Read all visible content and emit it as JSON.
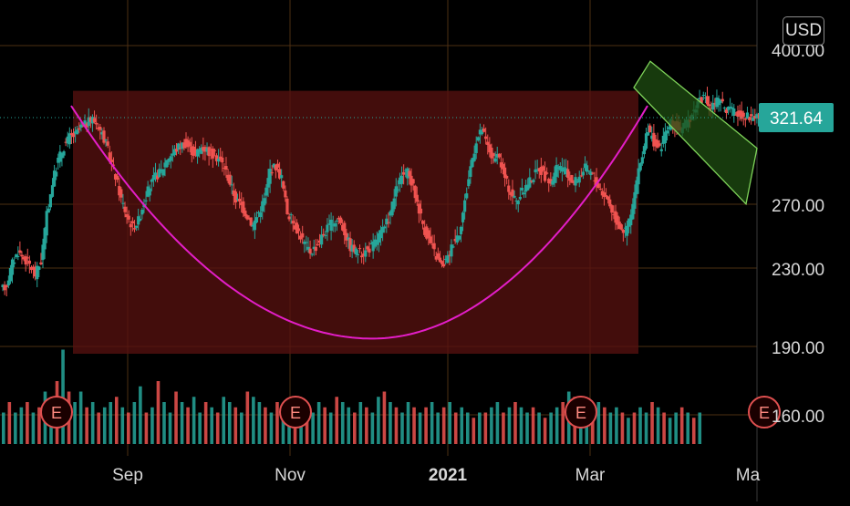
{
  "currency_button": "USD",
  "last_price_label": "321.64",
  "colors": {
    "background": "#000000",
    "grid": "#4d2f12",
    "up": "#26a69a",
    "down": "#ef5350",
    "cup_curve": "#e31ec8",
    "cup_zone": "#5a1210",
    "channel_fill": "#1f4d12",
    "channel_stroke": "#7fd45a",
    "last_price_badge": "#26a69a",
    "earnings_marker": "#e05050",
    "axis_text": "#d8d8d8"
  },
  "earnings_markers": [
    "E",
    "E",
    "E",
    "E"
  ],
  "chart_data": {
    "type": "candlestick",
    "title": "",
    "x_ticks": [
      "Sep",
      "Nov",
      "2021",
      "Mar",
      "Ma"
    ],
    "y_ticks": [
      "400.00",
      "270.00",
      "230.00",
      "190.00",
      "160.00"
    ],
    "price_range": [
      130,
      420
    ],
    "last_price": 321.64,
    "cup_rim_level": 338,
    "cup_bottom_price": 187,
    "cup_range_dates": [
      "Aug 20",
      "Mar 15"
    ],
    "channel_upper": [
      [
        0,
        356
      ],
      [
        1,
        303
      ]
    ],
    "channel_lower": [
      [
        0,
        340
      ],
      [
        1,
        269
      ]
    ],
    "prices": [
      [
        0,
        216
      ],
      [
        4,
        220
      ],
      [
        8,
        233
      ],
      [
        12,
        240
      ],
      [
        16,
        236
      ],
      [
        20,
        232
      ],
      [
        24,
        226
      ],
      [
        28,
        234
      ],
      [
        32,
        262
      ],
      [
        36,
        282
      ],
      [
        40,
        296
      ],
      [
        44,
        304
      ],
      [
        48,
        310
      ],
      [
        52,
        311
      ],
      [
        56,
        316
      ],
      [
        60,
        318
      ],
      [
        64,
        321
      ],
      [
        68,
        317
      ],
      [
        72,
        309
      ],
      [
        76,
        298
      ],
      [
        80,
        286
      ],
      [
        84,
        272
      ],
      [
        88,
        262
      ],
      [
        92,
        255
      ],
      [
        96,
        259
      ],
      [
        100,
        271
      ],
      [
        104,
        280
      ],
      [
        108,
        286
      ],
      [
        112,
        289
      ],
      [
        116,
        297
      ],
      [
        120,
        300
      ],
      [
        124,
        304
      ],
      [
        128,
        306
      ],
      [
        132,
        303
      ],
      [
        136,
        299
      ],
      [
        140,
        304
      ],
      [
        144,
        302
      ],
      [
        148,
        299
      ],
      [
        152,
        297
      ],
      [
        156,
        292
      ],
      [
        160,
        282
      ],
      [
        164,
        272
      ],
      [
        168,
        268
      ],
      [
        172,
        262
      ],
      [
        176,
        256
      ],
      [
        180,
        264
      ],
      [
        184,
        272
      ],
      [
        188,
        290
      ],
      [
        192,
        292
      ],
      [
        196,
        285
      ],
      [
        200,
        264
      ],
      [
        204,
        258
      ],
      [
        208,
        252
      ],
      [
        212,
        245
      ],
      [
        216,
        240
      ],
      [
        220,
        243
      ],
      [
        224,
        249
      ],
      [
        228,
        254
      ],
      [
        232,
        258
      ],
      [
        236,
        260
      ],
      [
        240,
        252
      ],
      [
        244,
        243
      ],
      [
        248,
        240
      ],
      [
        252,
        239
      ],
      [
        256,
        241
      ],
      [
        260,
        244
      ],
      [
        264,
        250
      ],
      [
        268,
        254
      ],
      [
        272,
        264
      ],
      [
        276,
        277
      ],
      [
        280,
        286
      ],
      [
        284,
        288
      ],
      [
        288,
        279
      ],
      [
        292,
        266
      ],
      [
        296,
        253
      ],
      [
        300,
        245
      ],
      [
        304,
        237
      ],
      [
        308,
        231
      ],
      [
        312,
        236
      ],
      [
        316,
        246
      ],
      [
        320,
        252
      ],
      [
        324,
        270
      ],
      [
        328,
        292
      ],
      [
        332,
        308
      ],
      [
        336,
        314
      ],
      [
        340,
        304
      ],
      [
        344,
        296
      ],
      [
        348,
        297
      ],
      [
        352,
        285
      ],
      [
        356,
        276
      ],
      [
        360,
        271
      ],
      [
        364,
        276
      ],
      [
        368,
        282
      ],
      [
        372,
        286
      ],
      [
        376,
        291
      ],
      [
        380,
        286
      ],
      [
        384,
        282
      ],
      [
        388,
        290
      ],
      [
        392,
        292
      ],
      [
        396,
        286
      ],
      [
        400,
        282
      ],
      [
        404,
        286
      ],
      [
        408,
        291
      ],
      [
        412,
        288
      ],
      [
        416,
        282
      ],
      [
        420,
        276
      ],
      [
        424,
        272
      ],
      [
        428,
        262
      ],
      [
        432,
        256
      ],
      [
        436,
        252
      ],
      [
        440,
        262
      ],
      [
        444,
        282
      ],
      [
        448,
        300
      ],
      [
        452,
        314
      ],
      [
        456,
        307
      ],
      [
        460,
        302
      ],
      [
        464,
        312
      ],
      [
        468,
        318
      ],
      [
        472,
        316
      ],
      [
        476,
        314
      ],
      [
        480,
        320
      ],
      [
        484,
        326
      ],
      [
        488,
        334
      ],
      [
        492,
        332
      ],
      [
        496,
        328
      ],
      [
        500,
        332
      ],
      [
        504,
        330
      ],
      [
        508,
        326
      ],
      [
        512,
        325
      ],
      [
        516,
        324
      ],
      [
        520,
        323
      ],
      [
        524,
        322
      ],
      [
        528,
        323
      ],
      [
        530,
        321.64
      ]
    ],
    "volumes": [
      0.3,
      0.4,
      0.3,
      0.35,
      0.4,
      0.3,
      0.35,
      0.5,
      0.4,
      0.6,
      0.9,
      0.5,
      0.4,
      0.5,
      0.35,
      0.4,
      0.3,
      0.35,
      0.4,
      0.45,
      0.35,
      0.3,
      0.4,
      0.55,
      0.3,
      0.35,
      0.6,
      0.4,
      0.3,
      0.5,
      0.4,
      0.35,
      0.45,
      0.3,
      0.4,
      0.35,
      0.3,
      0.45,
      0.4,
      0.35,
      0.3,
      0.5,
      0.45,
      0.4,
      0.35,
      0.3,
      0.4,
      0.35,
      0.3,
      0.25,
      0.3,
      0.35,
      0.3,
      0.4,
      0.35,
      0.3,
      0.45,
      0.4,
      0.35,
      0.3,
      0.4,
      0.35,
      0.3,
      0.45,
      0.5,
      0.4,
      0.35,
      0.3,
      0.4,
      0.35,
      0.3,
      0.35,
      0.4,
      0.3,
      0.35,
      0.4,
      0.3,
      0.35,
      0.3,
      0.25,
      0.3,
      0.3,
      0.35,
      0.4,
      0.3,
      0.35,
      0.4,
      0.35,
      0.3,
      0.35,
      0.3,
      0.25,
      0.3,
      0.35,
      0.4,
      0.5,
      0.45,
      0.4,
      0.35,
      0.3,
      0.4,
      0.35,
      0.3,
      0.35,
      0.3,
      0.25,
      0.3,
      0.35,
      0.3,
      0.4,
      0.35,
      0.3,
      0.25,
      0.3,
      0.35,
      0.3,
      0.25,
      0.3
    ]
  }
}
